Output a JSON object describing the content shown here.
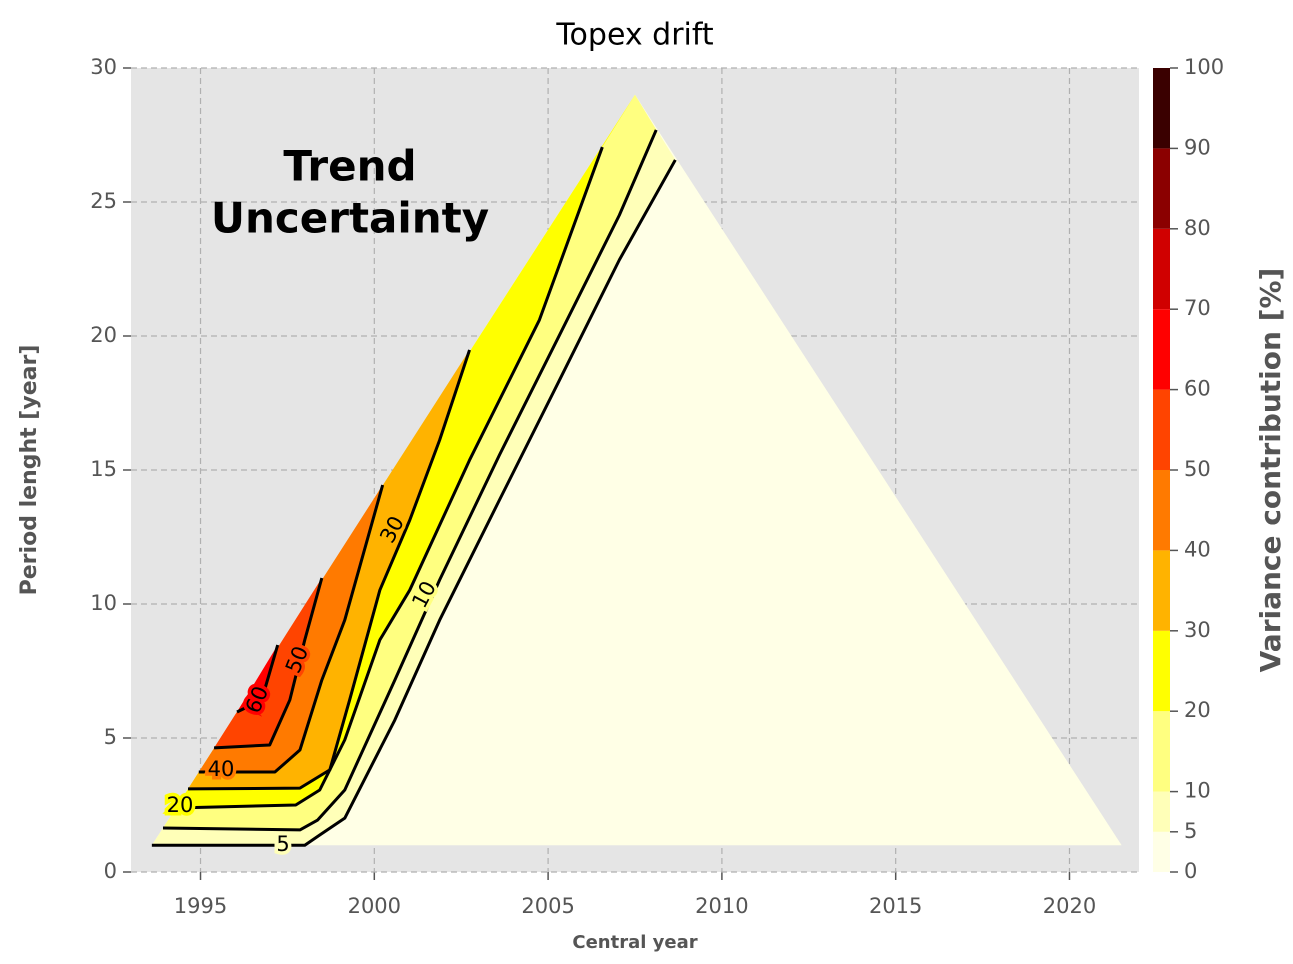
{
  "chart_data": {
    "type": "contour",
    "title": "Topex drift",
    "xlabel": "Central year",
    "ylabel": "Period lenght [year]",
    "annotation": [
      "Trend",
      "Uncertainty"
    ],
    "xlim": [
      1993,
      2022
    ],
    "xticks": [
      1995,
      2000,
      2005,
      2010,
      2015,
      2020
    ],
    "ylim": [
      0,
      30
    ],
    "yticks": [
      0,
      5,
      10,
      15,
      20,
      25,
      30
    ],
    "grid": true,
    "colorbar": {
      "label": "Variance contribution [%]",
      "levels": [
        0,
        5,
        10,
        20,
        30,
        40,
        50,
        60,
        70,
        80,
        90,
        100
      ],
      "colors": [
        "#ffffe6",
        "#ffffb8",
        "#ffff80",
        "#ffff00",
        "#ffb300",
        "#ff7a00",
        "#ff4400",
        "#ff0000",
        "#d00000",
        "#8b0000",
        "#3a0000"
      ]
    },
    "domain": {
      "x": [
        1993.6,
        2007.5,
        2021.5
      ],
      "y": [
        1,
        29,
        1
      ]
    },
    "series": [
      {
        "name": "5",
        "level": 5,
        "x": [
          1993.6,
          1996.85,
          1998.0,
          1998.43,
          1999.15,
          2000.59,
          2001.88,
          2003.6,
          2005.33,
          2007.05,
          2008.66
        ],
        "y": [
          1.0,
          1.0,
          1.0,
          1.38,
          2.01,
          5.67,
          9.4,
          13.88,
          18.36,
          22.84,
          26.57
        ]
      },
      {
        "name": "10",
        "level": 10,
        "x": [
          1993.92,
          1997.86,
          1998.37,
          1999.15,
          2000.59,
          2001.88,
          2003.6,
          2005.33,
          2007.05,
          2008.11
        ],
        "y": [
          1.64,
          1.57,
          1.94,
          3.06,
          7.16,
          10.9,
          15.56,
          20.04,
          24.51,
          27.69
        ]
      },
      {
        "name": "20",
        "level": 20,
        "x": [
          1994.29,
          1997.74,
          1998.43,
          1999.15,
          2000.16,
          2001.02,
          2002.74,
          2004.75,
          2006.56
        ],
        "y": [
          2.39,
          2.5,
          3.06,
          4.93,
          8.66,
          10.52,
          15.37,
          20.6,
          27.05
        ]
      },
      {
        "name": "30",
        "level": 30,
        "x": [
          1994.64,
          1997.86,
          1998.72,
          1999.29,
          2000.16,
          2001.02,
          2001.88,
          2002.74
        ],
        "y": [
          3.1,
          3.13,
          3.81,
          6.42,
          10.52,
          13.13,
          16.12,
          19.48
        ]
      },
      {
        "name": "40",
        "level": 40,
        "x": [
          1994.95,
          1997.14,
          1997.86,
          1998.49,
          1999.15,
          2000.24
        ],
        "y": [
          3.73,
          3.73,
          4.55,
          7.16,
          9.4,
          14.44
        ]
      },
      {
        "name": "50",
        "level": 50,
        "x": [
          1995.39,
          1996.99,
          1997.57,
          1998.0,
          1998.49
        ],
        "y": [
          4.63,
          4.74,
          6.42,
          8.66,
          10.97
        ]
      },
      {
        "name": "60",
        "level": 60,
        "x": [
          1996.05,
          1996.76,
          1997.22
        ],
        "y": [
          5.97,
          6.42,
          8.47
        ]
      }
    ]
  }
}
